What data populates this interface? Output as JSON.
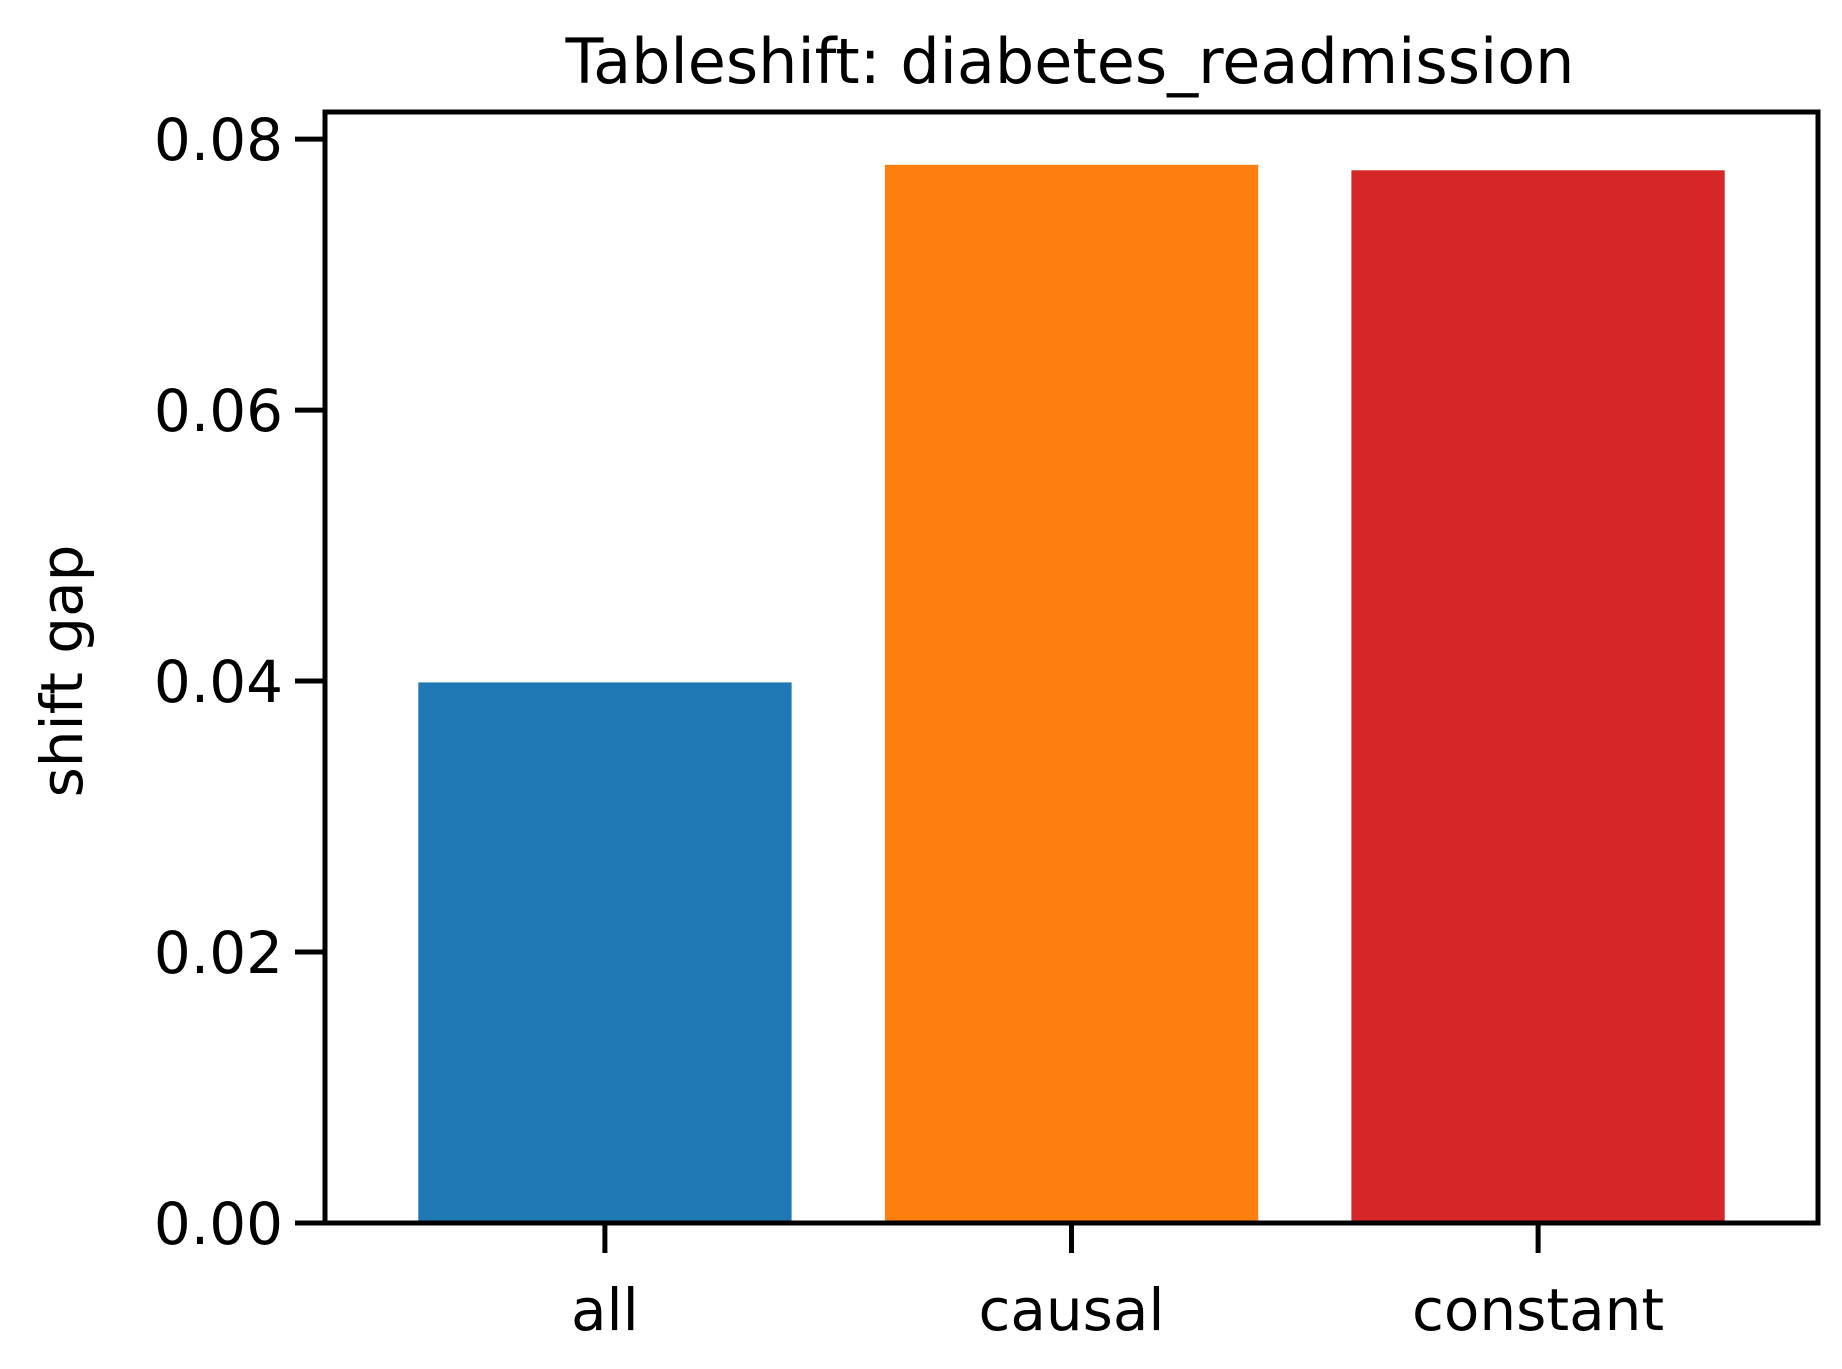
{
  "chart_data": {
    "type": "bar",
    "title": "Tableshift: diabetes_readmission",
    "xlabel": "",
    "ylabel": "shift gap",
    "categories": [
      "all",
      "causal",
      "constant"
    ],
    "values": [
      0.0399,
      0.0781,
      0.0777
    ],
    "colors": [
      "#1f77b4",
      "#ff7f0e",
      "#d62728"
    ],
    "ylim": [
      0,
      0.082
    ],
    "yticks": [
      0.0,
      0.02,
      0.04,
      0.06,
      0.08
    ],
    "ytick_labels": [
      "0.00",
      "0.02",
      "0.04",
      "0.06",
      "0.08"
    ],
    "grid": false,
    "legend": "none"
  }
}
